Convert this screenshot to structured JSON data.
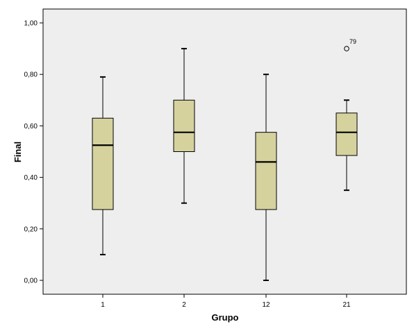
{
  "chart_data": {
    "type": "boxplot",
    "title": "",
    "xlabel": "Grupo",
    "ylabel": "Final",
    "ylim": [
      -0.05,
      1.05
    ],
    "yticks": [
      "0,00",
      "0,20",
      "0,40",
      "0,60",
      "0,80",
      "1,00"
    ],
    "ytick_values": [
      0.0,
      0.2,
      0.4,
      0.6,
      0.8,
      1.0
    ],
    "grid": false,
    "legend": "none",
    "plot_background": "#eeeeee",
    "box_fill": "#d6d29e",
    "categories": [
      "1",
      "2",
      "12",
      "21"
    ],
    "boxes": [
      {
        "category": "1",
        "min": 0.1,
        "q1": 0.275,
        "median": 0.525,
        "q3": 0.63,
        "max": 0.79,
        "outliers": []
      },
      {
        "category": "2",
        "min": 0.3,
        "q1": 0.5,
        "median": 0.575,
        "q3": 0.7,
        "max": 0.9,
        "outliers": []
      },
      {
        "category": "12",
        "min": 0.0,
        "q1": 0.275,
        "median": 0.46,
        "q3": 0.575,
        "max": 0.8,
        "outliers": []
      },
      {
        "category": "21",
        "min": 0.35,
        "q1": 0.485,
        "median": 0.575,
        "q3": 0.65,
        "max": 0.7,
        "outliers": [
          {
            "value": 0.9,
            "label": "79"
          }
        ]
      }
    ]
  }
}
